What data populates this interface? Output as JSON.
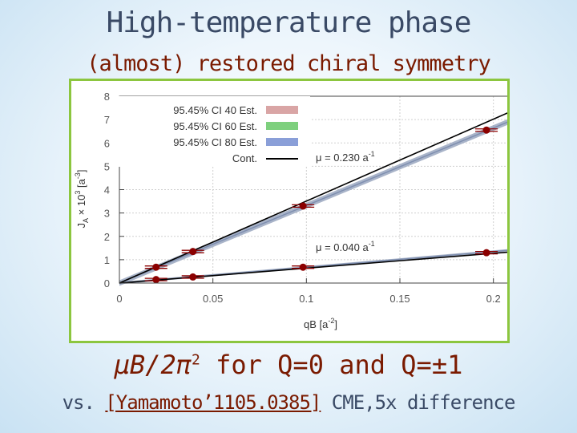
{
  "header": {
    "title": "High-temperature phase",
    "subtitle_paren": "(almost)",
    "subtitle_rest": " restored chiral symmetry"
  },
  "caption": {
    "formula": "μB/2π",
    "formula_sup": "2",
    "formula_tail": " for Q=0 and Q=±1",
    "vs_prefix": "vs. ",
    "reference": "[Yamamoto’1105.0385]",
    "vs_suffix": " CME,5x difference"
  },
  "colors": {
    "title": "#3a4a66",
    "accent": "#7a1a00",
    "frame": "#8cc63f",
    "point": "#8b0000",
    "ci40": "#d9a5a5",
    "ci60": "#7ed07e",
    "ci80": "#8a9fd8",
    "band": "#9aa7bf"
  },
  "chart_data": {
    "type": "scatter",
    "xlabel": "qB [a",
    "xlabel_sup": "-2",
    "xlabel_end": "]",
    "ylabel": "J",
    "ylabel_sub": "A",
    "ylabel_mid": " × 10",
    "ylabel_sup": "3",
    "ylabel_end": " [a",
    "ylabel_sup2": "-3",
    "ylabel_end2": "]",
    "xlim": [
      0,
      0.21
    ],
    "ylim": [
      0,
      8
    ],
    "xticks": [
      "0",
      "0.05",
      "0.1",
      "0.15",
      "0.2"
    ],
    "xtick_values": [
      0,
      0.05,
      0.1,
      0.15,
      0.2
    ],
    "yticks": [
      "0",
      "1",
      "2",
      "3",
      "4",
      "5",
      "6",
      "7",
      "8"
    ],
    "ytick_values": [
      0,
      1,
      2,
      3,
      4,
      5,
      6,
      7,
      8
    ],
    "legend_position": "top-left",
    "legend": [
      {
        "label": "95.45% CI 40 Est.",
        "color": "#d9a5a5"
      },
      {
        "label": "95.45% CI 60 Est.",
        "color": "#7ed07e"
      },
      {
        "label": "95.45% CI 80 Est.",
        "color": "#8a9fd8"
      },
      {
        "label": "Cont.",
        "color": "#000000"
      }
    ],
    "series": [
      {
        "name": "μ = 0.230 a",
        "name_sup": "-1",
        "x": [
          0.0196,
          0.0393,
          0.0982,
          0.1963
        ],
        "y": [
          0.68,
          1.35,
          3.3,
          6.55
        ],
        "fit_slope": 33.2,
        "cont_slope": 35.1
      },
      {
        "name": "μ = 0.040 a",
        "name_sup": "-1",
        "x": [
          0.0196,
          0.0393,
          0.0982,
          0.1963
        ],
        "y": [
          0.15,
          0.26,
          0.68,
          1.3
        ],
        "fit_slope": 6.75,
        "cont_slope": 6.37
      }
    ]
  }
}
